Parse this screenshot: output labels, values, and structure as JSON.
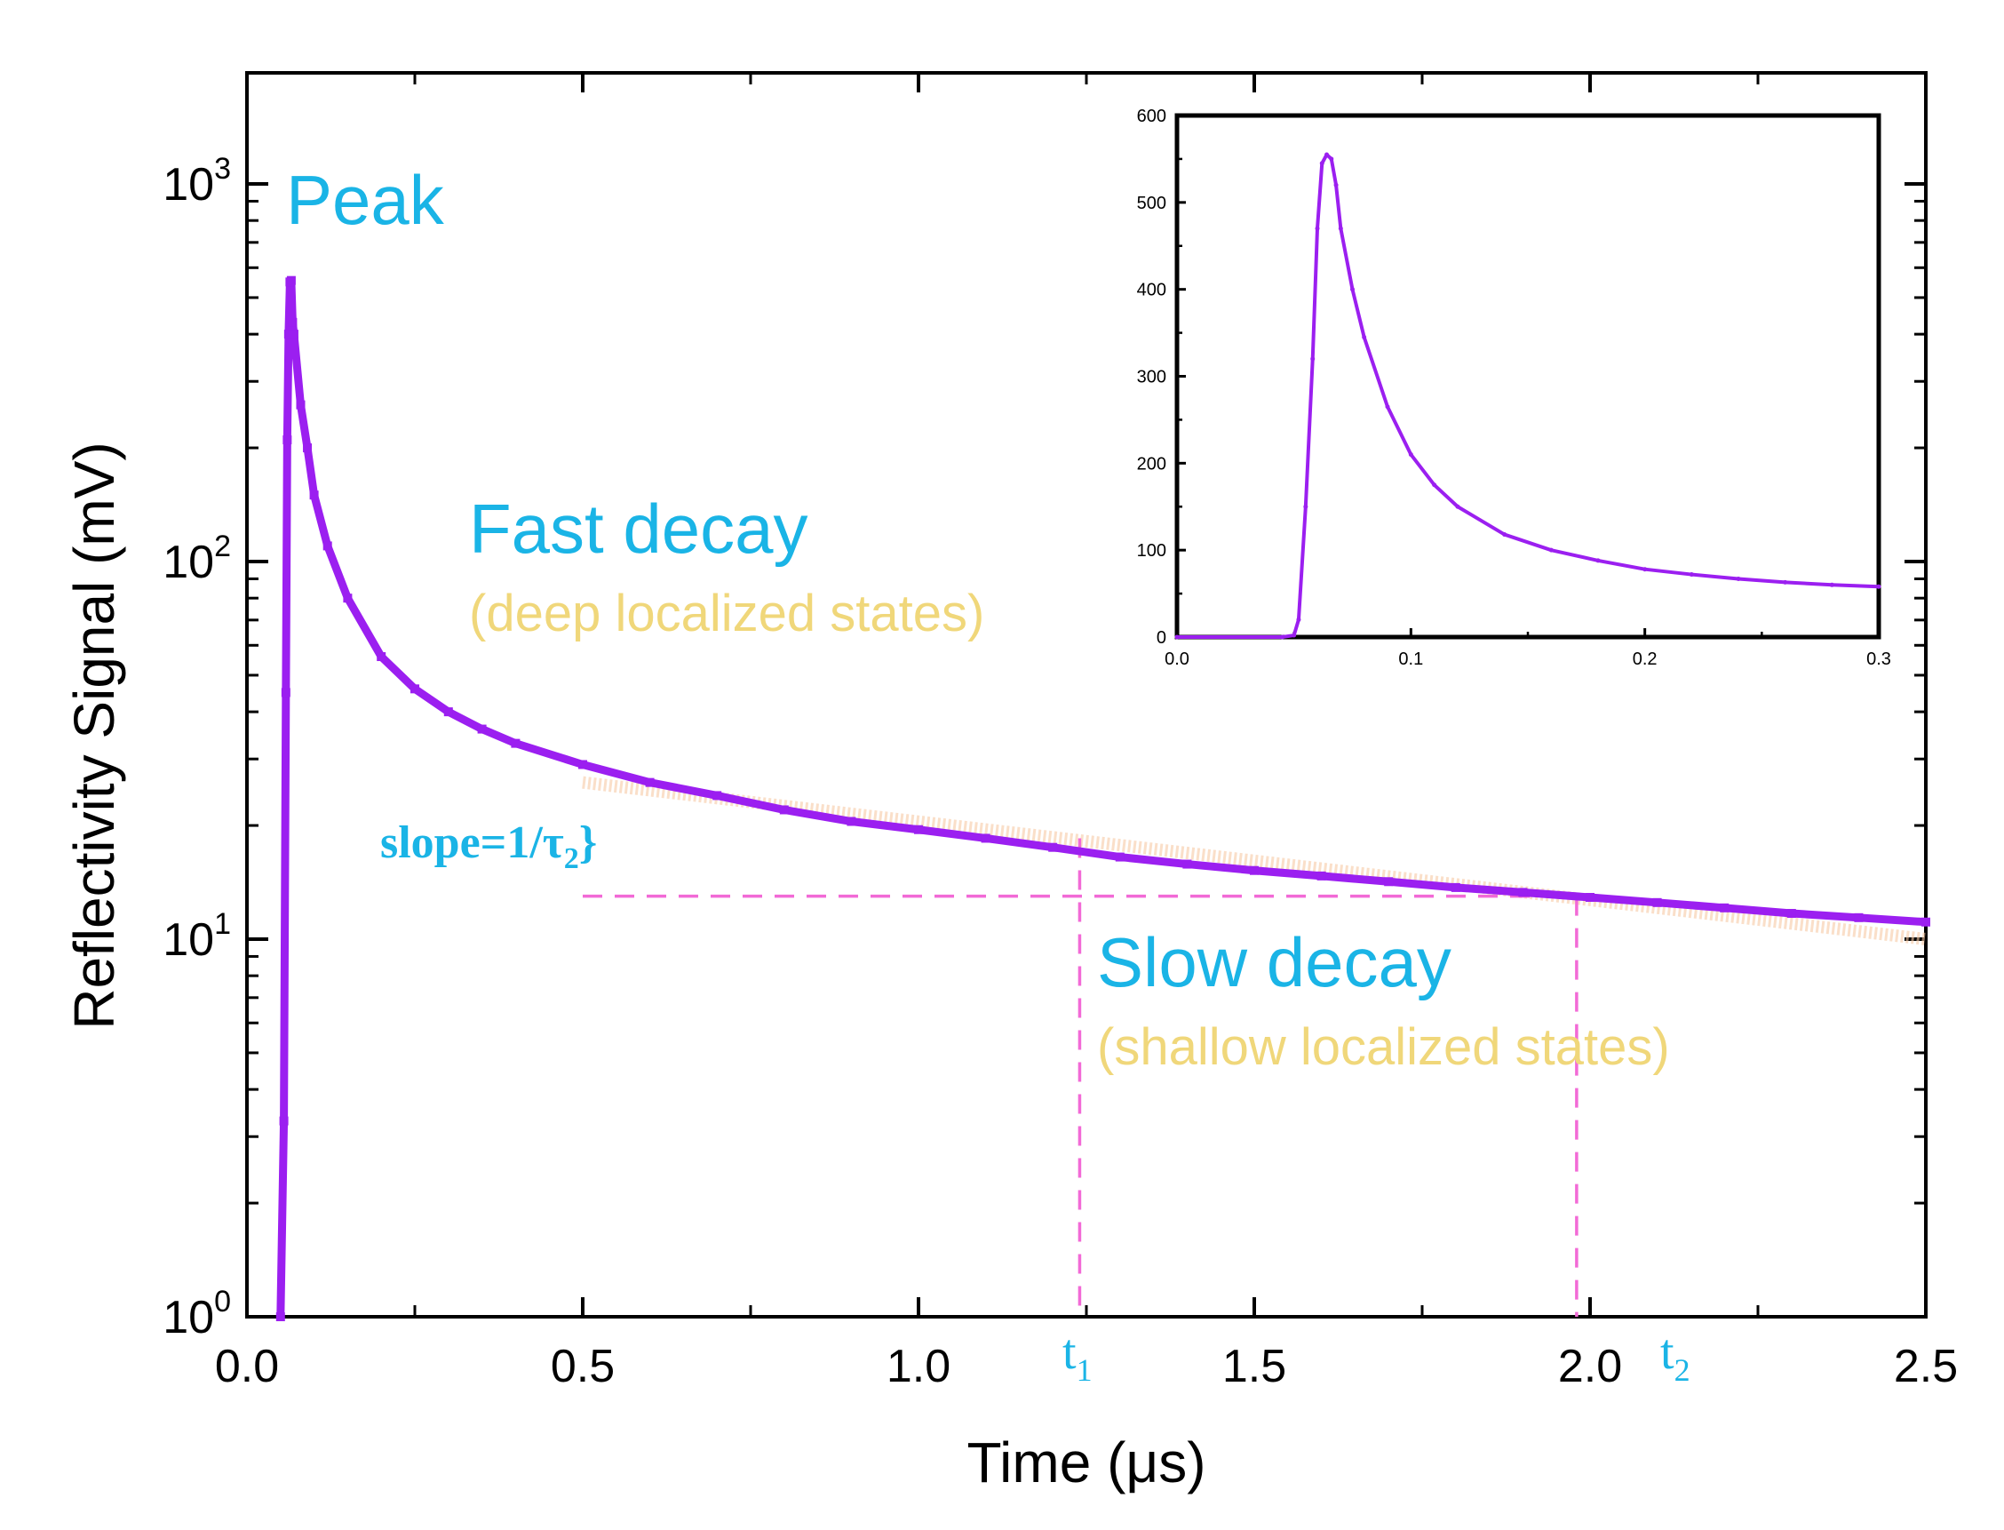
{
  "colors": {
    "series": "#9b1ff0",
    "guide": "#f26ad6",
    "label_cyan": "#1ab4e6",
    "label_yellow": "#f0d77a",
    "fit": "#f7c9a5",
    "axis": "#000000"
  },
  "chart_data": [
    {
      "id": "main",
      "type": "line",
      "xlabel": "Time (μs)",
      "ylabel": "Reflectivity Signal (mV)",
      "xlim": [
        0.0,
        2.5
      ],
      "yscale": "log",
      "ylim": [
        1,
        2000
      ],
      "xticks": [
        0.0,
        0.5,
        1.0,
        1.5,
        2.0,
        2.5
      ],
      "xtick_labels": [
        "0.0",
        "0.5",
        "1.0",
        "1.5",
        "2.0",
        "2.5"
      ],
      "yticks": [
        1,
        10,
        100,
        1000
      ],
      "ytick_base": "10",
      "ytick_exponents": [
        "0",
        "1",
        "2",
        "3"
      ],
      "series": [
        {
          "name": "reflectivity",
          "x": [
            0.05,
            0.055,
            0.058,
            0.06,
            0.062,
            0.064,
            0.066,
            0.068,
            0.07,
            0.08,
            0.09,
            0.1,
            0.12,
            0.15,
            0.2,
            0.25,
            0.3,
            0.35,
            0.4,
            0.5,
            0.6,
            0.7,
            0.8,
            0.9,
            1.0,
            1.1,
            1.2,
            1.3,
            1.4,
            1.5,
            1.6,
            1.7,
            1.8,
            1.9,
            2.0,
            2.1,
            2.2,
            2.3,
            2.4,
            2.5
          ],
          "y": [
            1,
            3.3,
            45,
            210,
            400,
            550,
            555,
            430,
            400,
            260,
            200,
            150,
            110,
            80,
            56,
            46,
            40,
            36,
            33,
            29,
            26,
            24,
            22,
            20.5,
            19.5,
            18.5,
            17.5,
            16.5,
            15.8,
            15.2,
            14.7,
            14.2,
            13.7,
            13.3,
            12.9,
            12.5,
            12.1,
            11.7,
            11.4,
            11.1
          ]
        }
      ],
      "guides": {
        "horizontal_y": 13,
        "horizontal_x_range": [
          0.5,
          2.0
        ],
        "t1_x": 1.24,
        "t2_x": 1.98
      },
      "fit_line": {
        "x": [
          0.5,
          2.5
        ],
        "y": [
          26,
          10
        ]
      },
      "annotations": {
        "peak": "Peak",
        "fast_title": "Fast decay",
        "fast_sub": "(deep localized states)",
        "slow_title": "Slow decay",
        "slow_sub": "(shallow localized states)",
        "slope_pre": "slope=1/τ",
        "slope_sub": "2",
        "slope_post": "}",
        "t1_base": "t",
        "t1_sub": "1",
        "t2_base": "t",
        "t2_sub": "2"
      }
    },
    {
      "id": "inset",
      "type": "line",
      "xlabel": "",
      "ylabel": "",
      "xlim": [
        0.0,
        0.3
      ],
      "ylim": [
        0,
        600
      ],
      "xticks": [
        0.0,
        0.1,
        0.2,
        0.3
      ],
      "xtick_labels": [
        "0.0",
        "0.1",
        "0.2",
        "0.3"
      ],
      "yticks": [
        0,
        100,
        200,
        300,
        400,
        500,
        600
      ],
      "ytick_labels": [
        "0",
        "100",
        "200",
        "300",
        "400",
        "500",
        "600"
      ],
      "series": [
        {
          "name": "reflectivity",
          "x": [
            0.0,
            0.045,
            0.05,
            0.052,
            0.055,
            0.058,
            0.06,
            0.062,
            0.064,
            0.066,
            0.068,
            0.07,
            0.075,
            0.08,
            0.09,
            0.1,
            0.11,
            0.12,
            0.14,
            0.16,
            0.18,
            0.2,
            0.22,
            0.24,
            0.26,
            0.28,
            0.3
          ],
          "y": [
            0,
            0,
            2,
            20,
            150,
            320,
            470,
            545,
            555,
            550,
            520,
            470,
            400,
            345,
            265,
            210,
            175,
            150,
            118,
            100,
            88,
            78,
            72,
            67,
            63,
            60,
            58
          ]
        }
      ]
    }
  ]
}
